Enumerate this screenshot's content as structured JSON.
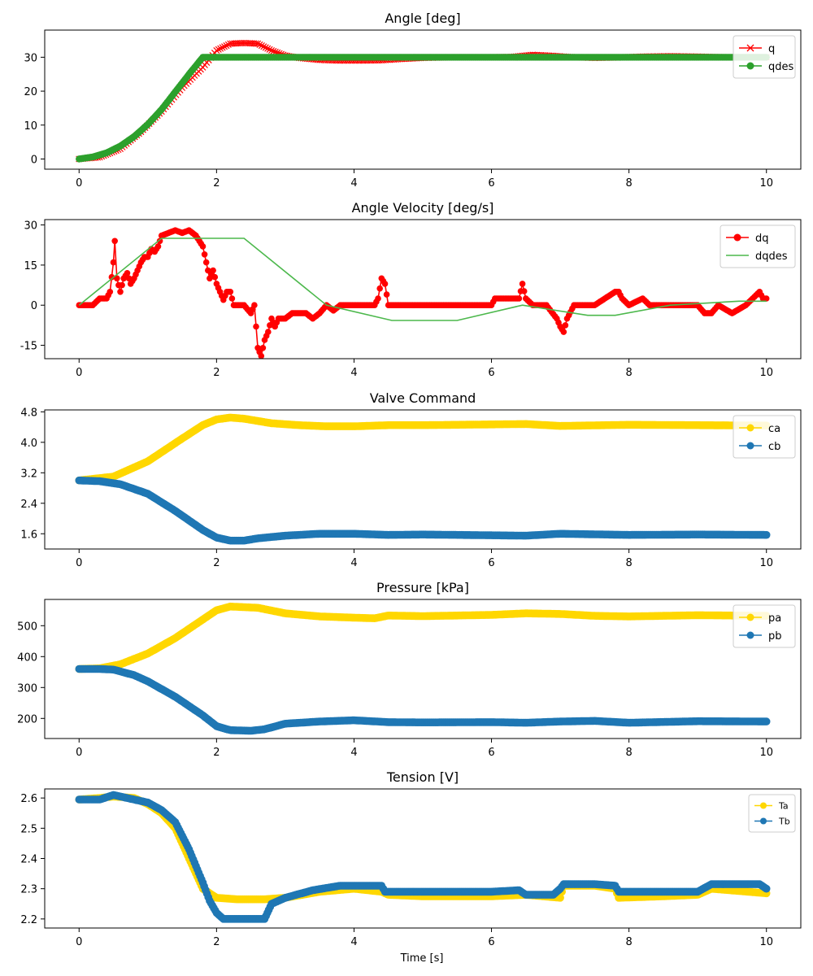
{
  "chart_data": [
    {
      "type": "line",
      "title": "Angle [deg]",
      "xlabel": "",
      "ylabel": "",
      "xlim": [
        -0.5,
        10.5
      ],
      "ylim": [
        -3,
        38
      ],
      "xticks": [
        0,
        2,
        4,
        6,
        8,
        10
      ],
      "yticks": [
        0,
        10,
        20,
        30
      ],
      "legend_position": "top-right",
      "series": [
        {
          "name": "q",
          "color": "#ff0000",
          "marker": "x",
          "line": true,
          "x": [
            0,
            0.3,
            0.6,
            0.9,
            1.2,
            1.5,
            1.8,
            2.0,
            2.2,
            2.4,
            2.6,
            2.8,
            3.0,
            3.2,
            3.5,
            3.8,
            4.1,
            4.4,
            4.7,
            5.0,
            5.5,
            6.0,
            6.3,
            6.6,
            6.9,
            7.2,
            7.5,
            7.8,
            8.2,
            8.6,
            9.0,
            9.4,
            9.8,
            10.0
          ],
          "y": [
            0,
            0.5,
            3,
            8,
            14,
            21,
            27,
            32,
            34,
            34.2,
            34,
            32,
            30.5,
            29.8,
            29.2,
            29.0,
            29.0,
            29.1,
            29.5,
            29.8,
            30,
            30,
            30.1,
            30.7,
            30.4,
            30.0,
            29.8,
            29.9,
            30.2,
            30.3,
            30.2,
            30.0,
            30.0,
            30.0
          ]
        },
        {
          "name": "qdes",
          "color": "#2ca02c",
          "marker": "o",
          "line": true,
          "x": [
            0,
            0.2,
            0.4,
            0.6,
            0.8,
            1.0,
            1.2,
            1.4,
            1.6,
            1.8,
            2.0,
            4.0,
            6.0,
            8.0,
            10.0
          ],
          "y": [
            0,
            0.6,
            1.8,
            3.8,
            6.6,
            10.2,
            14.6,
            19.8,
            25.0,
            30,
            30,
            30,
            30,
            30,
            30
          ]
        }
      ]
    },
    {
      "type": "line",
      "title": "Angle Velocity [deg/s]",
      "xlabel": "",
      "ylabel": "",
      "xlim": [
        -0.5,
        10.5
      ],
      "ylim": [
        -20,
        32
      ],
      "xticks": [
        0,
        2,
        4,
        6,
        8,
        10
      ],
      "yticks": [
        -15,
        0,
        15,
        30
      ],
      "legend_position": "top-right",
      "series": [
        {
          "name": "dq",
          "color": "#ff0000",
          "marker": "o",
          "line": true,
          "x": [
            0,
            0.1,
            0.2,
            0.3,
            0.4,
            0.45,
            0.5,
            0.52,
            0.55,
            0.6,
            0.65,
            0.7,
            0.75,
            0.8,
            0.85,
            0.9,
            0.95,
            1.0,
            1.05,
            1.1,
            1.15,
            1.2,
            1.3,
            1.4,
            1.5,
            1.6,
            1.7,
            1.8,
            1.85,
            1.9,
            1.95,
            2.0,
            2.05,
            2.1,
            2.15,
            2.2,
            2.25,
            2.3,
            2.4,
            2.5,
            2.55,
            2.6,
            2.65,
            2.7,
            2.75,
            2.8,
            2.85,
            2.9,
            3.0,
            3.1,
            3.2,
            3.3,
            3.4,
            3.5,
            3.6,
            3.7,
            3.8,
            4.0,
            4.3,
            4.35,
            4.4,
            4.45,
            4.5,
            5.0,
            5.5,
            6.0,
            6.05,
            6.3,
            6.4,
            6.45,
            6.5,
            6.6,
            6.8,
            6.95,
            7.0,
            7.05,
            7.1,
            7.2,
            7.5,
            7.8,
            7.85,
            7.9,
            8.0,
            8.2,
            8.3,
            8.5,
            8.8,
            9.0,
            9.1,
            9.2,
            9.3,
            9.5,
            9.7,
            9.9,
            9.95,
            10.0
          ],
          "y": [
            0,
            0,
            0,
            2.5,
            2.5,
            5,
            16,
            24,
            10,
            5,
            10,
            12,
            8,
            10,
            13,
            16,
            18,
            18,
            21,
            20,
            22,
            26,
            27,
            28,
            27,
            28,
            26,
            22,
            16,
            10,
            13,
            8,
            5,
            2,
            5,
            5,
            0,
            0,
            0,
            -3,
            0,
            -16,
            -19,
            -13,
            -10,
            -5,
            -8,
            -5,
            -5,
            -3,
            -3,
            -3,
            -5,
            -3,
            0,
            -2,
            0,
            0,
            0,
            2.5,
            10,
            8,
            0,
            0,
            0,
            0,
            2.5,
            2.5,
            2.5,
            8,
            2.5,
            0,
            0,
            -5,
            -8,
            -10,
            -5,
            0,
            0,
            5,
            5,
            2.5,
            0,
            2.5,
            0,
            0,
            0,
            0,
            -3,
            -3,
            0,
            -3,
            0,
            5,
            2.5,
            2.5
          ]
        },
        {
          "name": "dqdes",
          "color": "#4cb84c",
          "marker": "",
          "line": true,
          "x": [
            0,
            1.2,
            2.4,
            3.6,
            4.55,
            5.5,
            6.45,
            7.4,
            7.8,
            8.6,
            9.6,
            10.0
          ],
          "y": [
            0,
            25,
            25,
            0,
            -5.7,
            -5.7,
            0,
            -3.8,
            -3.8,
            0,
            1.5,
            1.5
          ]
        }
      ]
    },
    {
      "type": "line",
      "title": "Valve Command",
      "xlabel": "",
      "ylabel": "",
      "xlim": [
        -0.5,
        10.5
      ],
      "ylim": [
        1.2,
        4.85
      ],
      "xticks": [
        0,
        2,
        4,
        6,
        8,
        10
      ],
      "yticks": [
        1.6,
        2.4,
        3.2,
        4.0,
        4.8
      ],
      "legend_position": "top-right",
      "series": [
        {
          "name": "ca",
          "color": "#ffd700",
          "marker": "o",
          "line": true,
          "x": [
            0,
            0.5,
            1.0,
            1.5,
            1.8,
            2.0,
            2.2,
            2.4,
            2.8,
            3.2,
            3.6,
            4.0,
            4.5,
            5.0,
            6.0,
            6.5,
            7.0,
            8.0,
            9.0,
            10.0
          ],
          "y": [
            3.0,
            3.1,
            3.5,
            4.1,
            4.45,
            4.6,
            4.65,
            4.62,
            4.5,
            4.45,
            4.42,
            4.42,
            4.45,
            4.45,
            4.47,
            4.48,
            4.43,
            4.46,
            4.45,
            4.44
          ]
        },
        {
          "name": "cb",
          "color": "#1f77b4",
          "marker": "o",
          "line": true,
          "x": [
            0,
            0.3,
            0.6,
            1.0,
            1.4,
            1.8,
            2.0,
            2.2,
            2.4,
            2.6,
            3.0,
            3.5,
            4.0,
            4.5,
            5.0,
            6.0,
            6.5,
            7.0,
            8.0,
            9.0,
            10.0
          ],
          "y": [
            3.0,
            2.98,
            2.9,
            2.65,
            2.2,
            1.7,
            1.5,
            1.42,
            1.42,
            1.48,
            1.55,
            1.6,
            1.6,
            1.57,
            1.58,
            1.56,
            1.55,
            1.6,
            1.57,
            1.58,
            1.57
          ]
        }
      ]
    },
    {
      "type": "line",
      "title": "Pressure [kPa]",
      "xlabel": "",
      "ylabel": "",
      "xlim": [
        -0.5,
        10.5
      ],
      "ylim": [
        135,
        585
      ],
      "xticks": [
        0,
        2,
        4,
        6,
        8,
        10
      ],
      "yticks": [
        200,
        300,
        400,
        500
      ],
      "legend_position": "top-right",
      "series": [
        {
          "name": "pa",
          "color": "#ffd700",
          "marker": "o",
          "line": true,
          "x": [
            0,
            0.3,
            0.6,
            1.0,
            1.4,
            1.8,
            2.0,
            2.2,
            2.6,
            3.0,
            3.5,
            4.0,
            4.3,
            4.5,
            5.0,
            6.0,
            6.5,
            7.0,
            7.5,
            8.0,
            9.0,
            10.0
          ],
          "y": [
            360,
            362,
            375,
            410,
            460,
            520,
            550,
            562,
            558,
            540,
            530,
            526,
            524,
            533,
            531,
            535,
            540,
            538,
            532,
            530,
            534,
            532
          ]
        },
        {
          "name": "pb",
          "color": "#1f77b4",
          "marker": "o",
          "line": true,
          "x": [
            0,
            0.3,
            0.5,
            0.8,
            1.0,
            1.4,
            1.8,
            2.0,
            2.2,
            2.5,
            2.7,
            3.0,
            3.5,
            4.0,
            4.5,
            5.0,
            6.0,
            6.5,
            7.0,
            7.5,
            8.0,
            9.0,
            10.0
          ],
          "y": [
            360,
            360,
            358,
            340,
            320,
            270,
            210,
            175,
            162,
            160,
            165,
            183,
            190,
            194,
            188,
            187,
            188,
            186,
            190,
            192,
            186,
            191,
            190
          ]
        }
      ]
    },
    {
      "type": "line",
      "title": "Tension [V]",
      "xlabel": "Time [s]",
      "ylabel": "",
      "xlim": [
        -0.5,
        10.5
      ],
      "ylim": [
        2.17,
        2.63
      ],
      "xticks": [
        0,
        2,
        4,
        6,
        8,
        10
      ],
      "yticks": [
        2.2,
        2.3,
        2.4,
        2.5,
        2.6
      ],
      "legend_position": "top-right",
      "series": [
        {
          "name": "Ta",
          "color": "#ffd700",
          "marker": "o",
          "line": true,
          "x": [
            0,
            0.3,
            0.5,
            0.8,
            1.0,
            1.2,
            1.4,
            1.6,
            1.8,
            2.0,
            2.3,
            2.7,
            3.0,
            3.5,
            4.0,
            4.4,
            4.5,
            5.0,
            6.0,
            6.5,
            7.0,
            7.05,
            7.5,
            7.8,
            7.85,
            8.5,
            9.0,
            9.2,
            10.0
          ],
          "y": [
            2.595,
            2.6,
            2.605,
            2.6,
            2.58,
            2.55,
            2.5,
            2.4,
            2.3,
            2.27,
            2.265,
            2.265,
            2.27,
            2.29,
            2.3,
            2.29,
            2.28,
            2.275,
            2.275,
            2.28,
            2.27,
            2.31,
            2.31,
            2.3,
            2.27,
            2.275,
            2.28,
            2.3,
            2.285
          ]
        },
        {
          "name": "Tb",
          "color": "#1f77b4",
          "marker": "o",
          "line": true,
          "x": [
            0,
            0.3,
            0.5,
            0.8,
            1.0,
            1.2,
            1.4,
            1.6,
            1.8,
            1.9,
            2.0,
            2.1,
            2.5,
            2.7,
            2.8,
            3.0,
            3.4,
            3.8,
            4.0,
            4.4,
            4.45,
            5.0,
            6.0,
            6.4,
            6.5,
            6.9,
            7.0,
            7.05,
            7.5,
            7.8,
            7.85,
            8.5,
            9.0,
            9.2,
            9.5,
            9.9,
            10.0
          ],
          "y": [
            2.595,
            2.595,
            2.61,
            2.595,
            2.585,
            2.56,
            2.52,
            2.43,
            2.32,
            2.26,
            2.22,
            2.2,
            2.2,
            2.2,
            2.25,
            2.27,
            2.295,
            2.31,
            2.31,
            2.31,
            2.29,
            2.29,
            2.29,
            2.295,
            2.28,
            2.28,
            2.3,
            2.315,
            2.315,
            2.31,
            2.29,
            2.29,
            2.29,
            2.315,
            2.315,
            2.315,
            2.3
          ]
        }
      ]
    }
  ]
}
